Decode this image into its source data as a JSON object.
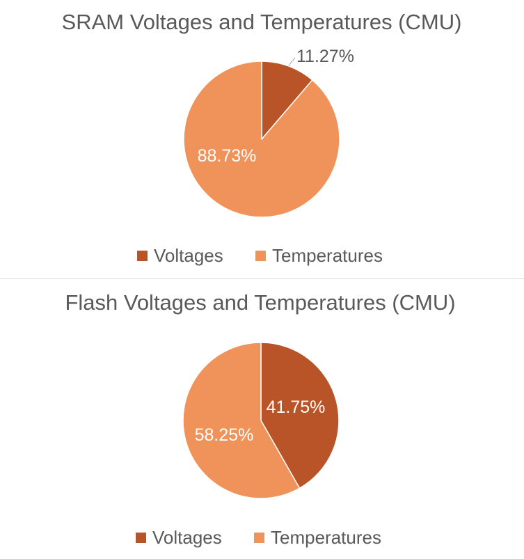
{
  "chart_data": [
    {
      "type": "pie",
      "title": "SRAM Voltages and Temperatures (CMU)",
      "categories": [
        "Voltages",
        "Temperatures"
      ],
      "values": [
        11.27,
        88.73
      ],
      "data_labels": [
        "11.27%",
        "88.73%"
      ],
      "colors": [
        "#B85427",
        "#F0935A"
      ],
      "legend_position": "bottom"
    },
    {
      "type": "pie",
      "title": "Flash Voltages and Temperatures (CMU)",
      "categories": [
        "Voltages",
        "Temperatures"
      ],
      "values": [
        41.75,
        58.25
      ],
      "data_labels": [
        "41.75%",
        "58.25%"
      ],
      "colors": [
        "#B85427",
        "#F0935A"
      ],
      "legend_position": "bottom"
    }
  ]
}
